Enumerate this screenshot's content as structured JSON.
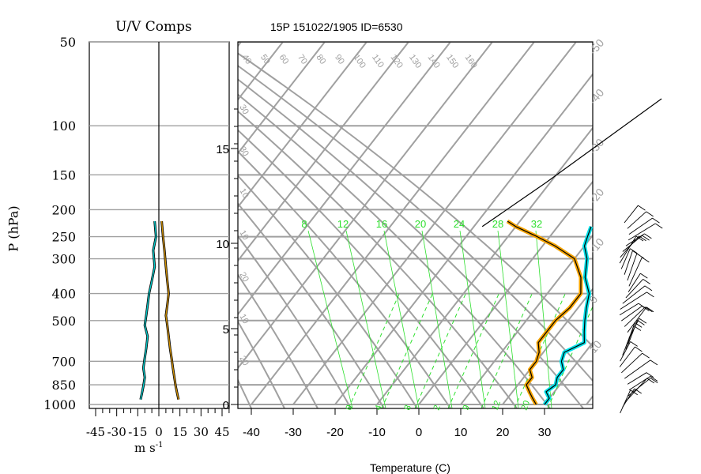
{
  "header": {
    "title": "15P 151022/1905 ID=6530"
  },
  "uv_panel": {
    "title": "U/V Comps",
    "xlabel": "m  s",
    "xlabel_exp": "-1",
    "ylabel": "P (hPa)"
  },
  "skewt": {
    "xlabel": "Temperature (C)"
  },
  "colors": {
    "grid": "#a0a0a0",
    "temp": "#f5a300",
    "dewpoint": "#00e0e8",
    "mixing": "#2ee02e",
    "u_comp": "#00c8c8",
    "v_comp": "#d09000"
  },
  "chart_data": [
    {
      "type": "line",
      "name": "uv_components",
      "xlabel": "m s-1",
      "ylabel": "P (hPa)",
      "x_ticks": [
        "-45",
        "-30",
        "-15",
        "0",
        "15",
        "30",
        "45"
      ],
      "y_ticks": [
        "50",
        "100",
        "150",
        "200",
        "250",
        "300",
        "400",
        "500",
        "700",
        "850",
        "1000"
      ],
      "xlim": [
        -50,
        50
      ],
      "ylim": [
        1000,
        50
      ],
      "y_scale": "log",
      "grid": true,
      "series": [
        {
          "key": "u",
          "points": [
            [
              -3,
              220
            ],
            [
              -2,
              250
            ],
            [
              -4,
              280
            ],
            [
              -3,
              320
            ],
            [
              -5,
              360
            ],
            [
              -7,
              400
            ],
            [
              -8,
              440
            ],
            [
              -9,
              480
            ],
            [
              -10,
              520
            ],
            [
              -8,
              570
            ],
            [
              -9,
              630
            ],
            [
              -10,
              680
            ],
            [
              -11,
              740
            ],
            [
              -10,
              800
            ],
            [
              -11,
              860
            ],
            [
              -12,
              910
            ],
            [
              -13,
              960
            ]
          ]
        },
        {
          "key": "v",
          "points": [
            [
              2,
              220
            ],
            [
              3,
              250
            ],
            [
              4,
              280
            ],
            [
              5,
              320
            ],
            [
              6,
              360
            ],
            [
              7,
              400
            ],
            [
              6,
              440
            ],
            [
              5,
              480
            ],
            [
              6,
              520
            ],
            [
              7,
              570
            ],
            [
              8,
              630
            ],
            [
              9,
              680
            ],
            [
              10,
              740
            ],
            [
              11,
              800
            ],
            [
              12,
              860
            ],
            [
              13,
              910
            ],
            [
              14,
              960
            ]
          ]
        }
      ]
    },
    {
      "type": "line",
      "name": "skewt_logp",
      "xlabel": "Temperature (C)",
      "x_ticks": [
        "-40",
        "-30",
        "-20",
        "-10",
        "0",
        "10",
        "20",
        "30"
      ],
      "height_ticks": [
        "0",
        "5",
        "10",
        "15"
      ],
      "skew_line_labels": [
        "-50",
        "-40",
        "-30",
        "-20",
        "-10",
        "0",
        "10"
      ],
      "theta_labels": [
        "40",
        "50",
        "60",
        "70",
        "80",
        "90",
        "100",
        "110",
        "120",
        "130",
        "140",
        "150",
        "160"
      ],
      "theta_side_labels": [
        "30",
        "30",
        "10",
        "10",
        "20",
        "10",
        "20"
      ],
      "mixing_ratio_labels": [
        "8",
        "12",
        "16",
        "20",
        "24",
        "28",
        "32"
      ],
      "mixing_ratio_bottom_labels": [
        "0",
        "4",
        "8",
        "2",
        "9",
        "12",
        "20"
      ],
      "ylim": [
        1000,
        50
      ],
      "y_scale": "log",
      "grid": true,
      "series": [
        {
          "key": "temperature",
          "points": [
            [
              28,
              1000
            ],
            [
              26,
              950
            ],
            [
              24,
              900
            ],
            [
              22,
              850
            ],
            [
              22,
              800
            ],
            [
              20,
              750
            ],
            [
              20,
              700
            ],
            [
              19,
              650
            ],
            [
              17,
              600
            ],
            [
              17,
              550
            ],
            [
              17,
              500
            ],
            [
              18,
              450
            ],
            [
              18,
              400
            ],
            [
              15,
              350
            ],
            [
              10,
              300
            ],
            [
              3,
              270
            ],
            [
              -3,
              250
            ],
            [
              -10,
              230
            ],
            [
              -13,
              220
            ]
          ]
        },
        {
          "key": "dewpoint",
          "points": [
            [
              30,
              1000
            ],
            [
              30,
              950
            ],
            [
              28,
              900
            ],
            [
              29,
              850
            ],
            [
              28,
              800
            ],
            [
              28,
              750
            ],
            [
              26,
              700
            ],
            [
              25,
              650
            ],
            [
              28,
              600
            ],
            [
              26,
              550
            ],
            [
              24,
              500
            ],
            [
              22,
              450
            ],
            [
              20,
              400
            ],
            [
              16,
              350
            ],
            [
              13,
              300
            ],
            [
              10,
              270
            ],
            [
              9,
              250
            ],
            [
              8,
              230
            ]
          ]
        },
        {
          "key": "wind_profile_upper",
          "points": [
            [
              -18,
              230
            ],
            [
              -11,
              160
            ],
            [
              1,
              80
            ]
          ]
        }
      ]
    }
  ]
}
